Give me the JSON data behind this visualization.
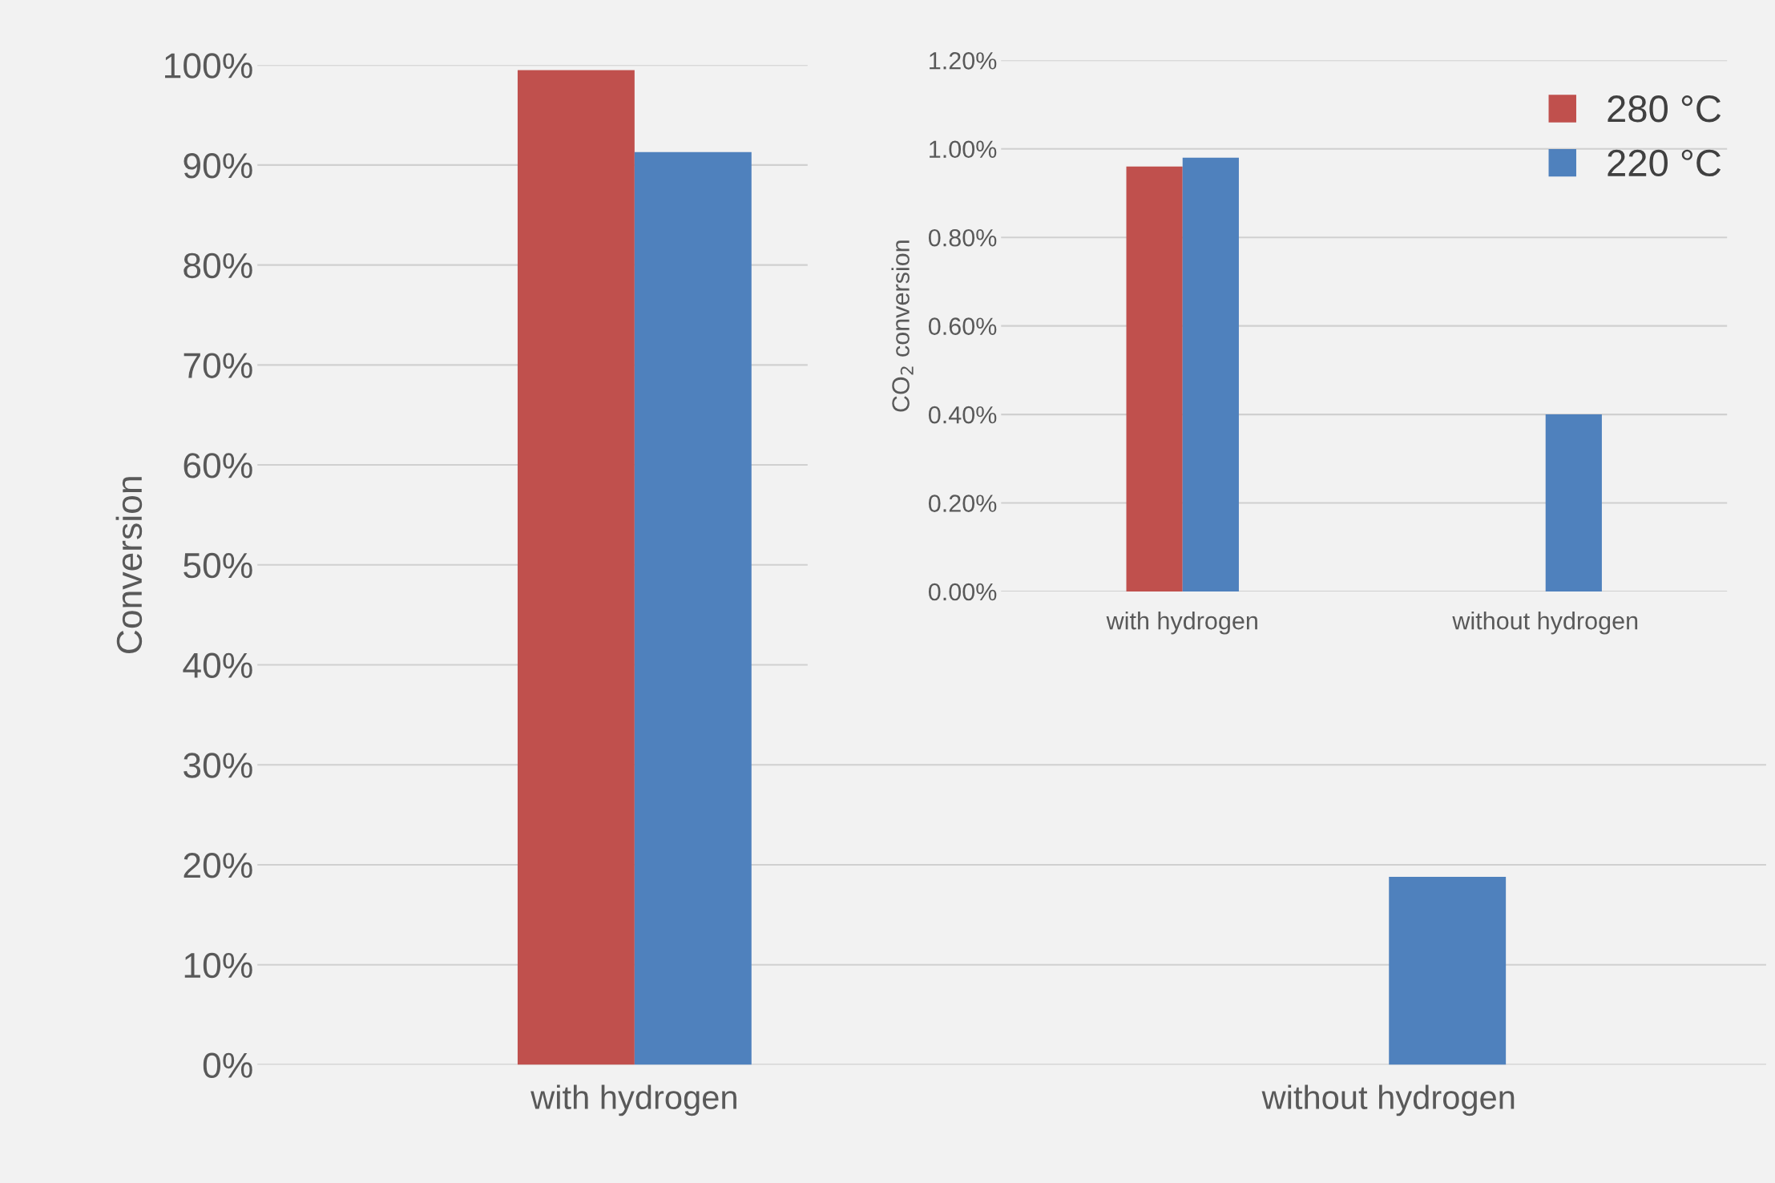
{
  "chart_data": [
    {
      "type": "bar",
      "ylabel": "Conversion",
      "categories": [
        "with hydrogen",
        "without hydrogen"
      ],
      "series": [
        {
          "color": "#c0504d",
          "values": [
            99.5,
            null
          ]
        },
        {
          "color": "#4f81bd",
          "values": [
            91.3,
            18.8
          ]
        }
      ],
      "ylim": [
        0,
        100
      ],
      "yticks": [
        {
          "value": 0,
          "label": "0%"
        },
        {
          "value": 10,
          "label": "10%"
        },
        {
          "value": 20,
          "label": "20%"
        },
        {
          "value": 30,
          "label": "30%"
        },
        {
          "value": 40,
          "label": "40%"
        },
        {
          "value": 50,
          "label": "50%"
        },
        {
          "value": 60,
          "label": "60%"
        },
        {
          "value": 70,
          "label": "70%"
        },
        {
          "value": 80,
          "label": "80%"
        },
        {
          "value": 90,
          "label": "90%"
        },
        {
          "value": 100,
          "label": "100%"
        }
      ],
      "grid": "y"
    },
    {
      "type": "bar",
      "ylabel": "CO$_{2}$ conversion",
      "categories": [
        "with hydrogen",
        "without hydrogen"
      ],
      "series": [
        {
          "name": "280 °C",
          "color": "#c0504d",
          "values": [
            0.96,
            null
          ]
        },
        {
          "name": "220 °C",
          "color": "#4f81bd",
          "values": [
            0.98,
            0.4
          ]
        }
      ],
      "ylim": [
        0,
        1.2
      ],
      "yticks": [
        {
          "value": 0,
          "label": "0.00%"
        },
        {
          "value": 0.2,
          "label": "0.20%"
        },
        {
          "value": 0.4,
          "label": "0.40%"
        },
        {
          "value": 0.6,
          "label": "0.60%"
        },
        {
          "value": 0.8,
          "label": "0.80%"
        },
        {
          "value": 1.0,
          "label": "1.00%"
        },
        {
          "value": 1.2,
          "label": "1.20%"
        }
      ],
      "grid": "y",
      "legend": "top right"
    }
  ]
}
